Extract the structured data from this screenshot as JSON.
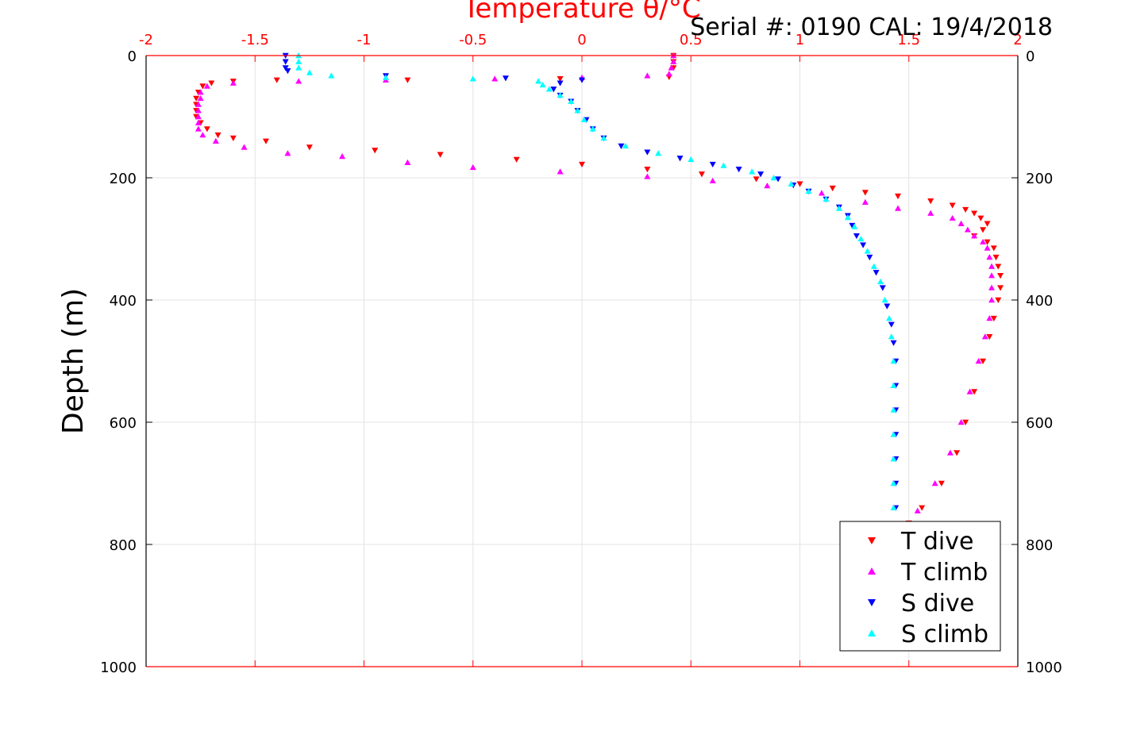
{
  "chart_data": {
    "type": "scatter",
    "title": "Serial #: 0190  CAL: 19/4/2018",
    "xlabel": "Temperature θ/°C",
    "ylabel": "Depth (m)",
    "xlim": [
      -2,
      2
    ],
    "ylim": [
      0,
      1000
    ],
    "y_reversed": true,
    "x_axis_position": "top",
    "right_axis_mirrors_depth": true,
    "x_ticks": [
      "-2",
      "-1.5",
      "-1",
      "-0.5",
      "0",
      "0.5",
      "1",
      "1.5",
      "2"
    ],
    "y_ticks": [
      "0",
      "200",
      "400",
      "600",
      "800",
      "1000"
    ],
    "grid": true,
    "legend_position": "bottom-right",
    "colors": {
      "xaxis": "#ff0000",
      "text": "#000000"
    },
    "series": [
      {
        "name": "T dive",
        "marker": "triangle-down",
        "color": "#ff0000",
        "points": [
          [
            0.42,
            0
          ],
          [
            0.42,
            10
          ],
          [
            0.42,
            20
          ],
          [
            0.4,
            35
          ],
          [
            -0.1,
            38
          ],
          [
            -0.8,
            40
          ],
          [
            -1.4,
            40
          ],
          [
            -1.6,
            42
          ],
          [
            -1.7,
            45
          ],
          [
            -1.74,
            50
          ],
          [
            -1.76,
            60
          ],
          [
            -1.77,
            70
          ],
          [
            -1.77,
            80
          ],
          [
            -1.77,
            90
          ],
          [
            -1.77,
            100
          ],
          [
            -1.75,
            110
          ],
          [
            -1.72,
            120
          ],
          [
            -1.67,
            130
          ],
          [
            -1.6,
            135
          ],
          [
            -1.45,
            140
          ],
          [
            -1.25,
            150
          ],
          [
            -0.95,
            155
          ],
          [
            -0.65,
            162
          ],
          [
            -0.3,
            170
          ],
          [
            0,
            178
          ],
          [
            0.3,
            186
          ],
          [
            0.55,
            194
          ],
          [
            0.8,
            202
          ],
          [
            1.0,
            210
          ],
          [
            1.15,
            217
          ],
          [
            1.3,
            224
          ],
          [
            1.45,
            230
          ],
          [
            1.6,
            238
          ],
          [
            1.7,
            245
          ],
          [
            1.76,
            252
          ],
          [
            1.8,
            258
          ],
          [
            1.83,
            266
          ],
          [
            1.86,
            275
          ],
          [
            1.84,
            285
          ],
          [
            1.8,
            295
          ],
          [
            1.86,
            305
          ],
          [
            1.89,
            315
          ],
          [
            1.9,
            330
          ],
          [
            1.91,
            345
          ],
          [
            1.92,
            360
          ],
          [
            1.92,
            380
          ],
          [
            1.91,
            400
          ],
          [
            1.89,
            430
          ],
          [
            1.87,
            460
          ],
          [
            1.84,
            500
          ],
          [
            1.8,
            550
          ],
          [
            1.76,
            600
          ],
          [
            1.72,
            650
          ],
          [
            1.65,
            700
          ],
          [
            1.56,
            740
          ],
          [
            1.5,
            765
          ]
        ]
      },
      {
        "name": "T climb",
        "marker": "triangle-up",
        "color": "#ff00ff",
        "points": [
          [
            0.42,
            0
          ],
          [
            0.42,
            10
          ],
          [
            0.41,
            20
          ],
          [
            0.4,
            30
          ],
          [
            0.3,
            33
          ],
          [
            0.0,
            36
          ],
          [
            -0.4,
            38
          ],
          [
            -0.9,
            40
          ],
          [
            -1.3,
            42
          ],
          [
            -1.6,
            45
          ],
          [
            -1.72,
            50
          ],
          [
            -1.75,
            60
          ],
          [
            -1.75,
            70
          ],
          [
            -1.76,
            80
          ],
          [
            -1.76,
            90
          ],
          [
            -1.76,
            100
          ],
          [
            -1.76,
            110
          ],
          [
            -1.76,
            120
          ],
          [
            -1.74,
            130
          ],
          [
            -1.68,
            140
          ],
          [
            -1.55,
            150
          ],
          [
            -1.35,
            160
          ],
          [
            -1.1,
            165
          ],
          [
            -0.8,
            175
          ],
          [
            -0.5,
            183
          ],
          [
            -0.1,
            190
          ],
          [
            0.3,
            198
          ],
          [
            0.6,
            205
          ],
          [
            0.85,
            213
          ],
          [
            1.1,
            225
          ],
          [
            1.3,
            240
          ],
          [
            1.45,
            250
          ],
          [
            1.6,
            258
          ],
          [
            1.7,
            266
          ],
          [
            1.74,
            275
          ],
          [
            1.77,
            285
          ],
          [
            1.8,
            295
          ],
          [
            1.84,
            305
          ],
          [
            1.86,
            315
          ],
          [
            1.87,
            330
          ],
          [
            1.88,
            345
          ],
          [
            1.88,
            360
          ],
          [
            1.88,
            380
          ],
          [
            1.88,
            400
          ],
          [
            1.87,
            430
          ],
          [
            1.85,
            460
          ],
          [
            1.82,
            500
          ],
          [
            1.78,
            550
          ],
          [
            1.74,
            600
          ],
          [
            1.69,
            650
          ],
          [
            1.62,
            700
          ],
          [
            1.54,
            745
          ],
          [
            1.48,
            770
          ]
        ]
      },
      {
        "name": "S dive",
        "marker": "triangle-down",
        "color": "#0000ff",
        "points": [
          [
            -1.36,
            0
          ],
          [
            -1.36,
            10
          ],
          [
            -1.36,
            20
          ],
          [
            -1.35,
            25
          ],
          [
            -0.9,
            33
          ],
          [
            -0.35,
            37
          ],
          [
            0.0,
            40
          ],
          [
            -0.1,
            45
          ],
          [
            -0.13,
            55
          ],
          [
            -0.1,
            65
          ],
          [
            -0.05,
            75
          ],
          [
            -0.02,
            90
          ],
          [
            0.02,
            105
          ],
          [
            0.05,
            120
          ],
          [
            0.1,
            135
          ],
          [
            0.18,
            148
          ],
          [
            0.3,
            158
          ],
          [
            0.45,
            168
          ],
          [
            0.6,
            178
          ],
          [
            0.72,
            186
          ],
          [
            0.82,
            194
          ],
          [
            0.9,
            202
          ],
          [
            0.97,
            212
          ],
          [
            1.04,
            222
          ],
          [
            1.12,
            235
          ],
          [
            1.18,
            248
          ],
          [
            1.22,
            262
          ],
          [
            1.24,
            278
          ],
          [
            1.26,
            295
          ],
          [
            1.29,
            310
          ],
          [
            1.32,
            330
          ],
          [
            1.35,
            355
          ],
          [
            1.38,
            380
          ],
          [
            1.4,
            410
          ],
          [
            1.42,
            440
          ],
          [
            1.43,
            470
          ],
          [
            1.44,
            500
          ],
          [
            1.44,
            540
          ],
          [
            1.44,
            580
          ],
          [
            1.44,
            620
          ],
          [
            1.44,
            660
          ],
          [
            1.44,
            700
          ],
          [
            1.44,
            740
          ],
          [
            1.44,
            770
          ]
        ]
      },
      {
        "name": "S climb",
        "marker": "triangle-up",
        "color": "#00ffff",
        "points": [
          [
            -1.3,
            0
          ],
          [
            -1.3,
            10
          ],
          [
            -1.3,
            20
          ],
          [
            -1.25,
            28
          ],
          [
            -1.15,
            33
          ],
          [
            -0.9,
            36
          ],
          [
            -0.5,
            38
          ],
          [
            -0.2,
            42
          ],
          [
            -0.18,
            48
          ],
          [
            -0.15,
            55
          ],
          [
            -0.1,
            65
          ],
          [
            -0.05,
            75
          ],
          [
            -0.02,
            90
          ],
          [
            0.01,
            105
          ],
          [
            0.05,
            120
          ],
          [
            0.1,
            135
          ],
          [
            0.2,
            148
          ],
          [
            0.35,
            160
          ],
          [
            0.5,
            170
          ],
          [
            0.65,
            180
          ],
          [
            0.78,
            190
          ],
          [
            0.88,
            200
          ],
          [
            0.96,
            210
          ],
          [
            1.04,
            222
          ],
          [
            1.12,
            235
          ],
          [
            1.18,
            250
          ],
          [
            1.22,
            265
          ],
          [
            1.25,
            280
          ],
          [
            1.28,
            300
          ],
          [
            1.31,
            320
          ],
          [
            1.34,
            345
          ],
          [
            1.37,
            370
          ],
          [
            1.39,
            400
          ],
          [
            1.41,
            430
          ],
          [
            1.42,
            460
          ],
          [
            1.43,
            500
          ],
          [
            1.43,
            540
          ],
          [
            1.43,
            580
          ],
          [
            1.43,
            620
          ],
          [
            1.43,
            660
          ],
          [
            1.43,
            700
          ],
          [
            1.43,
            740
          ],
          [
            1.43,
            770
          ]
        ]
      }
    ]
  }
}
